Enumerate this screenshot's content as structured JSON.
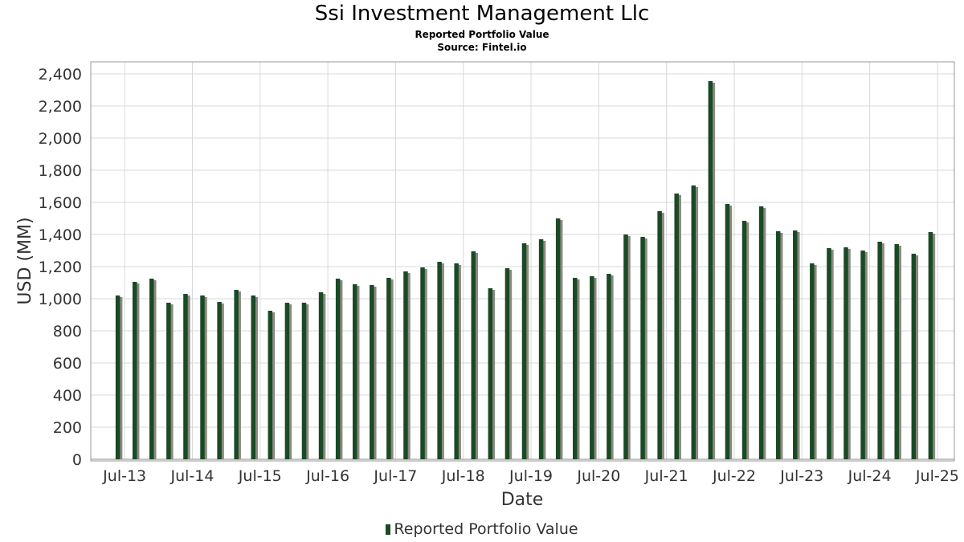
{
  "chart_data": {
    "type": "bar",
    "title": "Ssi Investment Management Llc",
    "subtitle_lines": [
      "Reported Portfolio Value",
      "Source: Fintel.io"
    ],
    "xlabel": "Date",
    "ylabel": "USD (MM)",
    "ylim": [
      0,
      2400
    ],
    "yticks": [
      0,
      200,
      400,
      600,
      800,
      1000,
      1200,
      1400,
      1600,
      1800,
      2000,
      2200,
      2400
    ],
    "ytick_labels": [
      "0",
      "200",
      "400",
      "600",
      "800",
      "1,000",
      "1,200",
      "1,400",
      "1,600",
      "1,800",
      "2,000",
      "2,200",
      "2,400"
    ],
    "xtick_labels": [
      "Jul-13",
      "Jul-14",
      "Jul-15",
      "Jul-16",
      "Jul-17",
      "Jul-18",
      "Jul-19",
      "Jul-20",
      "Jul-21",
      "Jul-22",
      "Jul-23",
      "Jul-24",
      "Jul-25"
    ],
    "x_range": [
      "2013-01",
      "2025-10"
    ],
    "grid": true,
    "legend_position": "bottom",
    "colors": {
      "bar": "#1a4a24",
      "bar_shadow": "#8a8a80",
      "grid": "#d8d8d8"
    },
    "series": [
      {
        "name": "Reported Portfolio Value",
        "categories": [
          "2013-06",
          "2013-09",
          "2013-12",
          "2014-03",
          "2014-06",
          "2014-09",
          "2014-12",
          "2015-03",
          "2015-06",
          "2015-09",
          "2015-12",
          "2016-03",
          "2016-06",
          "2016-09",
          "2016-12",
          "2017-03",
          "2017-06",
          "2017-09",
          "2017-12",
          "2018-03",
          "2018-06",
          "2018-09",
          "2018-12",
          "2019-03",
          "2019-06",
          "2019-09",
          "2019-12",
          "2020-03",
          "2020-06",
          "2020-09",
          "2020-12",
          "2021-03",
          "2021-06",
          "2021-09",
          "2021-12",
          "2022-03",
          "2022-06",
          "2022-09",
          "2022-12",
          "2023-03",
          "2023-06",
          "2023-09",
          "2023-12",
          "2024-03",
          "2024-06",
          "2024-09",
          "2024-12",
          "2025-03",
          "2025-06"
        ],
        "values": [
          1020,
          1105,
          1125,
          975,
          1030,
          1020,
          980,
          1055,
          1020,
          925,
          975,
          975,
          1040,
          1125,
          1090,
          1085,
          1130,
          1170,
          1195,
          1230,
          1220,
          1295,
          1065,
          1190,
          1345,
          1370,
          1500,
          1130,
          1140,
          1155,
          1400,
          1385,
          1545,
          1655,
          1705,
          2355,
          1590,
          1485,
          1575,
          1420,
          1425,
          1220,
          1315,
          1320,
          1300,
          1355,
          1340,
          1280,
          1415
        ]
      }
    ]
  }
}
